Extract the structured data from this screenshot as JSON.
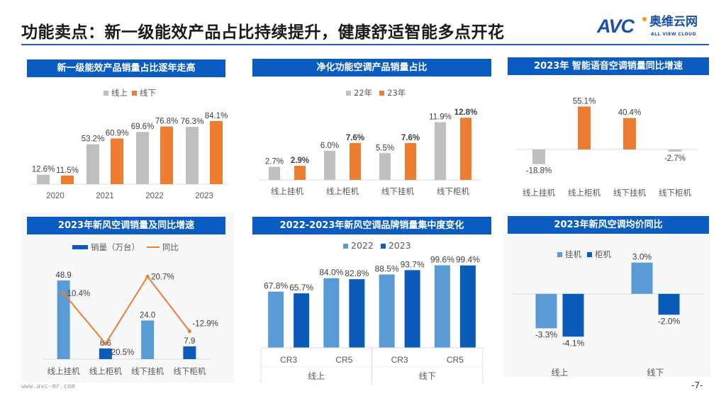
{
  "header": {
    "title": "功能卖点：新一级能效产品占比持续提升，健康舒适智能多点开花",
    "logo": {
      "mark": "AVC",
      "name_cn": "奥维云网",
      "name_en": "ALL VIEW CLOUD"
    }
  },
  "footer": {
    "url": "www.avc-mr.com",
    "page_number": "-7-"
  },
  "colors": {
    "title_bar": "#0b5cc0",
    "gray": "#bfbfbf",
    "orange": "#ed7d31",
    "light_blue": "#5b9bd5",
    "dark_blue": "#0b5cb8"
  },
  "chart_data": [
    {
      "type": "bar",
      "title": "新一级能效产品销量占比逐年走高",
      "categories": [
        "2020",
        "2021",
        "2022",
        "2023"
      ],
      "series": [
        {
          "name": "线上",
          "values": [
            12.6,
            53.2,
            69.6,
            76.3
          ],
          "color": "#bfbfbf"
        },
        {
          "name": "线下",
          "values": [
            11.5,
            60.9,
            76.8,
            84.1
          ],
          "color": "#ed7d31"
        }
      ],
      "unit": "%",
      "ylim": [
        0,
        100
      ],
      "legend": "top",
      "grid": false
    },
    {
      "type": "bar",
      "title": "净化功能空调产品销量占比",
      "categories": [
        "线上挂机",
        "线上柜机",
        "线下挂机",
        "线下柜机"
      ],
      "series": [
        {
          "name": "22年",
          "values": [
            2.7,
            6.0,
            5.5,
            11.9
          ],
          "color": "#bfbfbf"
        },
        {
          "name": "23年",
          "values": [
            2.9,
            7.6,
            7.6,
            12.8
          ],
          "color": "#ed7d31"
        }
      ],
      "unit": "%",
      "ylim": [
        0,
        14
      ],
      "legend": "top",
      "grid": false
    },
    {
      "type": "bar",
      "title": "2023年 智能语音空调销量同比增速",
      "categories": [
        "线上挂机",
        "线上柜机",
        "线下挂机",
        "线下柜机"
      ],
      "series": [
        {
          "values": [
            -18.8,
            55.1,
            40.4,
            -2.7
          ],
          "color": "#ed7d31",
          "point_colors": [
            "#bfbfbf",
            "#ed7d31",
            "#ed7d31",
            "#bfbfbf"
          ]
        }
      ],
      "unit": "%",
      "ylim": [
        -25,
        60
      ],
      "grid": false
    },
    {
      "type": "bar+line",
      "title": "2023年新风空调销量及同比增速",
      "categories": [
        "线上挂机",
        "线上柜机",
        "线下挂机",
        "线下柜机"
      ],
      "series": [
        {
          "name": "销量（万台）",
          "type": "bar",
          "values": [
            48.9,
            6.6,
            24.0,
            7.9
          ],
          "color": "#0b5cb8",
          "point_colors": [
            "#5b9bd5",
            "#0b5cb8",
            "#5b9bd5",
            "#0b5cb8"
          ],
          "unit": ""
        },
        {
          "name": "同比",
          "type": "line",
          "axis": "secondary",
          "values": [
            10.4,
            -20.5,
            20.7,
            -12.9
          ],
          "color": "#ed7d31",
          "unit": "%"
        }
      ],
      "ylim": [
        0,
        55
      ],
      "y2lim": [
        -30,
        30
      ],
      "legend": "top",
      "grid": false
    },
    {
      "type": "bar",
      "title": "2022-2023年新风空调品牌销量集中度变化",
      "categories": [
        "CR3",
        "CR5",
        "CR3",
        "CR5"
      ],
      "category_groups": [
        "线上",
        "线下"
      ],
      "series": [
        {
          "name": "2022",
          "values": [
            67.8,
            84.0,
            88.5,
            99.6
          ],
          "color": "#5b9bd5"
        },
        {
          "name": "2023",
          "values": [
            65.7,
            82.8,
            93.7,
            99.4
          ],
          "color": "#0b5cb8"
        }
      ],
      "unit": "%",
      "ylim": [
        0,
        100
      ],
      "legend": "top",
      "grid": false
    },
    {
      "type": "bar",
      "title": "2023年新风空调均价同比",
      "categories": [
        "线上",
        "线下"
      ],
      "series": [
        {
          "name": "挂机",
          "values": [
            -3.3,
            3.0
          ],
          "color": "#5b9bd5"
        },
        {
          "name": "柜机",
          "values": [
            -4.1,
            -2.0
          ],
          "color": "#0b5cb8"
        }
      ],
      "unit": "%",
      "ylim": [
        -5,
        4
      ],
      "legend": "top",
      "grid": false
    }
  ]
}
